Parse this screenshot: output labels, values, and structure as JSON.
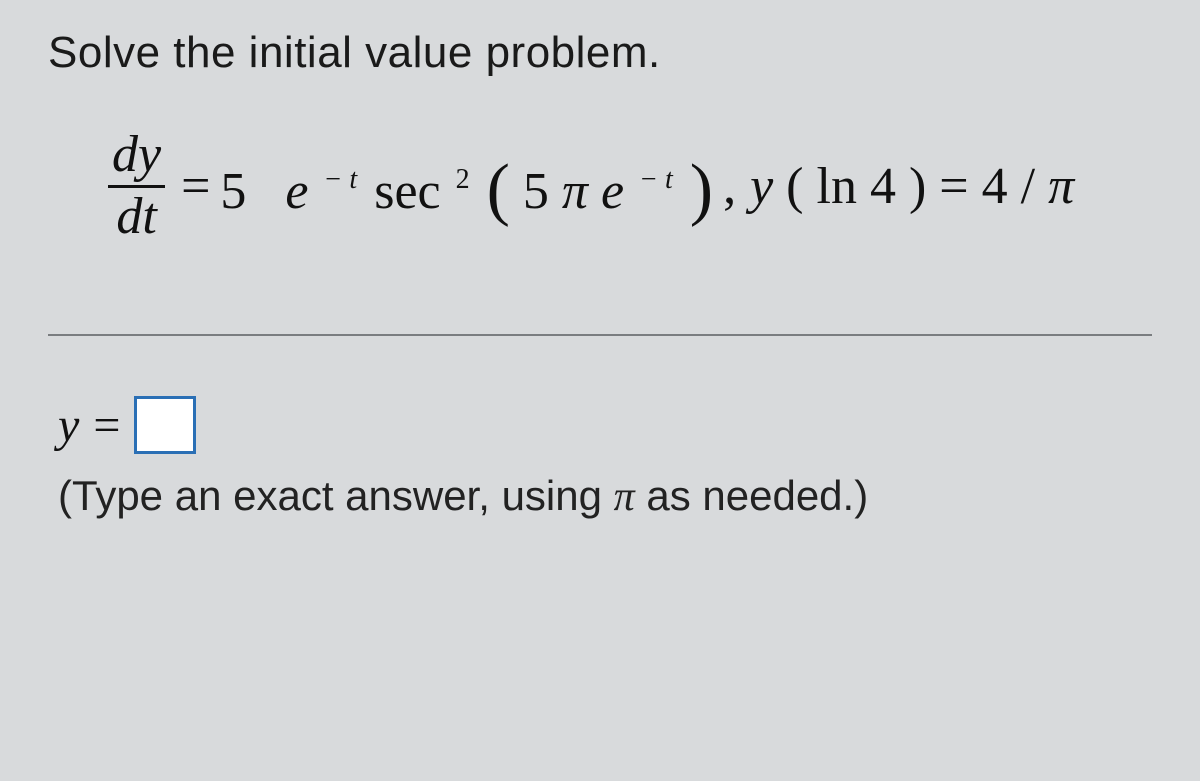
{
  "background_color": "#d8dadc",
  "text_color": "#222222",
  "math_font": "Times New Roman",
  "body_font": "Arial",
  "prompt": {
    "text": "Solve the initial value problem.",
    "fontsize": 44
  },
  "equation": {
    "fontsize": 52,
    "frac_num": "dy",
    "frac_den": "dt",
    "equals": " = ",
    "coef": "5",
    "e1": "e",
    "e1_exp": " − t",
    "func": " sec ",
    "func_exp": "2",
    "paren_open": "(",
    "inner_coef": "5",
    "inner_pi": "π",
    "inner_e": " e",
    "inner_e_exp": " − t",
    "paren_close": ")",
    "comma": ",  ",
    "cond_y": "y",
    "cond_open": "(",
    "cond_ln": "ln",
    "cond_arg": " 4",
    "cond_close": ")",
    "cond_eq": " = ",
    "cond_rhs_num": "4",
    "cond_rhs_slash": " / ",
    "cond_rhs_pi": "π"
  },
  "separator_color": "#7a7d80",
  "answer": {
    "lhs": "y",
    "eq": "=",
    "box_border_color": "#2a6fb5",
    "box_bg": "#ffffff",
    "value": ""
  },
  "hint": {
    "open": "(Type an exact answer, using ",
    "pi": "π",
    "close": " as needed.)",
    "fontsize": 42
  }
}
